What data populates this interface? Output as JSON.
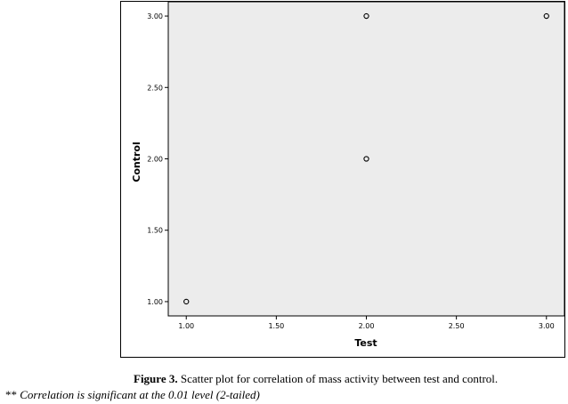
{
  "chart_data": {
    "type": "scatter",
    "xlabel": "Test",
    "ylabel": "Control",
    "xlim": [
      0.9,
      3.1
    ],
    "ylim": [
      0.9,
      3.1
    ],
    "x_ticks": [
      "1.00",
      "1.50",
      "2.00",
      "2.50",
      "3.00"
    ],
    "y_ticks": [
      "1.00",
      "1.50",
      "2.00",
      "2.50",
      "3.00"
    ],
    "points": [
      {
        "x": 1.0,
        "y": 1.0
      },
      {
        "x": 2.0,
        "y": 3.0
      },
      {
        "x": 2.0,
        "y": 2.0
      },
      {
        "x": 3.0,
        "y": 3.0
      }
    ],
    "grid": false,
    "plot_background": "#ececec",
    "marker_style": "open circle"
  },
  "caption": {
    "label": "Figure 3.",
    "text": "Scatter plot for correlation of mass activity between test and control."
  },
  "footnote": {
    "marker": "**",
    "text": "Correlation is significant at the 0.01 level (2-tailed)"
  }
}
